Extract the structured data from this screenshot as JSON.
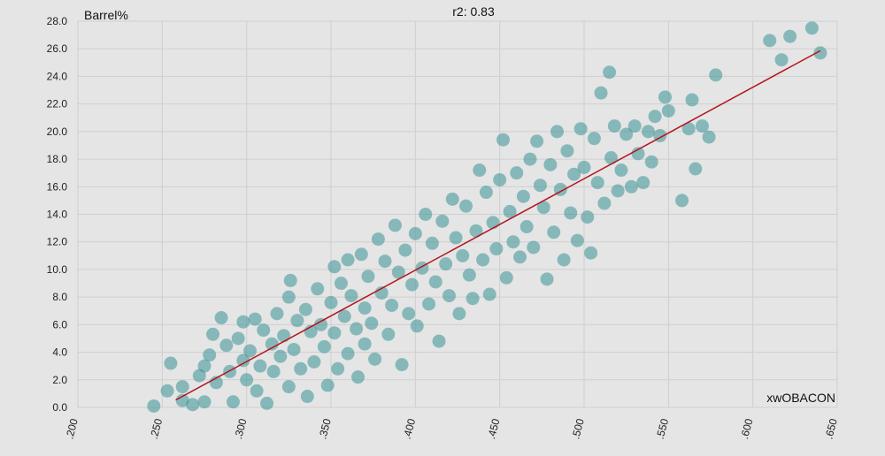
{
  "chart_data": {
    "type": "scatter",
    "title": "r2: 0.83",
    "xlabel": "xwOBACON",
    "ylabel": "Barrel%",
    "xlim": [
      0.2,
      0.65
    ],
    "ylim": [
      0,
      28
    ],
    "x_ticks": [
      ".200",
      ".250",
      ".300",
      ".350",
      ".400",
      ".450",
      ".500",
      ".550",
      ".600",
      ".650"
    ],
    "y_ticks": [
      "0.0",
      "2.0",
      "4.0",
      "6.0",
      "8.0",
      "10.0",
      "12.0",
      "14.0",
      "16.0",
      "18.0",
      "20.0",
      "22.0",
      "24.0",
      "26.0",
      "28.0"
    ],
    "grid": true,
    "dot_color": "#3a9396",
    "trend_color": "#b3141b",
    "trendline": {
      "slope": 66.3,
      "intercept": -16.57,
      "x_range": [
        0.258,
        0.64
      ]
    },
    "series": [
      {
        "points": [
          [
            0.245,
            0.1
          ],
          [
            0.253,
            1.2
          ],
          [
            0.255,
            3.2
          ],
          [
            0.262,
            0.5
          ],
          [
            0.262,
            1.5
          ],
          [
            0.268,
            0.2
          ],
          [
            0.272,
            2.3
          ],
          [
            0.275,
            3.0
          ],
          [
            0.275,
            0.4
          ],
          [
            0.278,
            3.8
          ],
          [
            0.28,
            5.3
          ],
          [
            0.282,
            1.8
          ],
          [
            0.285,
            6.5
          ],
          [
            0.288,
            4.5
          ],
          [
            0.29,
            2.6
          ],
          [
            0.292,
            0.4
          ],
          [
            0.295,
            5.0
          ],
          [
            0.298,
            3.4
          ],
          [
            0.298,
            6.2
          ],
          [
            0.3,
            2.0
          ],
          [
            0.302,
            4.1
          ],
          [
            0.305,
            6.4
          ],
          [
            0.306,
            1.2
          ],
          [
            0.308,
            3.0
          ],
          [
            0.31,
            5.6
          ],
          [
            0.312,
            0.3
          ],
          [
            0.315,
            4.6
          ],
          [
            0.316,
            2.6
          ],
          [
            0.318,
            6.8
          ],
          [
            0.32,
            3.7
          ],
          [
            0.322,
            5.2
          ],
          [
            0.325,
            1.5
          ],
          [
            0.325,
            8.0
          ],
          [
            0.326,
            9.2
          ],
          [
            0.328,
            4.2
          ],
          [
            0.33,
            6.3
          ],
          [
            0.332,
            2.8
          ],
          [
            0.335,
            7.1
          ],
          [
            0.336,
            0.8
          ],
          [
            0.338,
            5.5
          ],
          [
            0.34,
            3.3
          ],
          [
            0.342,
            8.6
          ],
          [
            0.344,
            6.0
          ],
          [
            0.346,
            4.4
          ],
          [
            0.348,
            1.6
          ],
          [
            0.35,
            7.6
          ],
          [
            0.352,
            10.2
          ],
          [
            0.352,
            5.4
          ],
          [
            0.354,
            2.8
          ],
          [
            0.356,
            9.0
          ],
          [
            0.358,
            6.6
          ],
          [
            0.36,
            3.9
          ],
          [
            0.36,
            10.7
          ],
          [
            0.362,
            8.1
          ],
          [
            0.365,
            5.7
          ],
          [
            0.366,
            2.2
          ],
          [
            0.368,
            11.1
          ],
          [
            0.37,
            7.2
          ],
          [
            0.37,
            4.6
          ],
          [
            0.372,
            9.5
          ],
          [
            0.374,
            6.1
          ],
          [
            0.376,
            3.5
          ],
          [
            0.378,
            12.2
          ],
          [
            0.38,
            8.3
          ],
          [
            0.382,
            10.6
          ],
          [
            0.384,
            5.3
          ],
          [
            0.386,
            7.4
          ],
          [
            0.388,
            13.2
          ],
          [
            0.39,
            9.8
          ],
          [
            0.392,
            3.1
          ],
          [
            0.394,
            11.4
          ],
          [
            0.396,
            6.8
          ],
          [
            0.398,
            8.9
          ],
          [
            0.4,
            12.6
          ],
          [
            0.401,
            5.9
          ],
          [
            0.404,
            10.1
          ],
          [
            0.406,
            14.0
          ],
          [
            0.408,
            7.5
          ],
          [
            0.41,
            11.9
          ],
          [
            0.412,
            9.1
          ],
          [
            0.414,
            4.8
          ],
          [
            0.416,
            13.5
          ],
          [
            0.418,
            10.4
          ],
          [
            0.42,
            8.1
          ],
          [
            0.422,
            15.1
          ],
          [
            0.424,
            12.3
          ],
          [
            0.426,
            6.8
          ],
          [
            0.428,
            11.0
          ],
          [
            0.43,
            14.6
          ],
          [
            0.432,
            9.6
          ],
          [
            0.434,
            7.9
          ],
          [
            0.436,
            12.8
          ],
          [
            0.438,
            17.2
          ],
          [
            0.44,
            10.7
          ],
          [
            0.442,
            15.6
          ],
          [
            0.444,
            8.2
          ],
          [
            0.446,
            13.4
          ],
          [
            0.448,
            11.5
          ],
          [
            0.45,
            16.5
          ],
          [
            0.452,
            19.4
          ],
          [
            0.454,
            9.4
          ],
          [
            0.456,
            14.2
          ],
          [
            0.458,
            12.0
          ],
          [
            0.46,
            17.0
          ],
          [
            0.462,
            10.9
          ],
          [
            0.464,
            15.3
          ],
          [
            0.466,
            13.1
          ],
          [
            0.468,
            18.0
          ],
          [
            0.47,
            11.6
          ],
          [
            0.472,
            19.3
          ],
          [
            0.474,
            16.1
          ],
          [
            0.476,
            14.5
          ],
          [
            0.478,
            9.3
          ],
          [
            0.48,
            17.6
          ],
          [
            0.482,
            12.7
          ],
          [
            0.484,
            20.0
          ],
          [
            0.486,
            15.8
          ],
          [
            0.488,
            10.7
          ],
          [
            0.49,
            18.6
          ],
          [
            0.492,
            14.1
          ],
          [
            0.494,
            16.9
          ],
          [
            0.496,
            12.1
          ],
          [
            0.498,
            20.2
          ],
          [
            0.5,
            17.4
          ],
          [
            0.502,
            13.8
          ],
          [
            0.504,
            11.2
          ],
          [
            0.506,
            19.5
          ],
          [
            0.508,
            16.3
          ],
          [
            0.51,
            22.8
          ],
          [
            0.512,
            14.8
          ],
          [
            0.515,
            24.3
          ],
          [
            0.516,
            18.1
          ],
          [
            0.518,
            20.4
          ],
          [
            0.52,
            15.7
          ],
          [
            0.522,
            17.2
          ],
          [
            0.525,
            19.8
          ],
          [
            0.528,
            16.0
          ],
          [
            0.53,
            20.4
          ],
          [
            0.532,
            18.4
          ],
          [
            0.535,
            16.3
          ],
          [
            0.538,
            20.0
          ],
          [
            0.54,
            17.8
          ],
          [
            0.542,
            21.1
          ],
          [
            0.545,
            19.7
          ],
          [
            0.548,
            22.5
          ],
          [
            0.55,
            21.5
          ],
          [
            0.558,
            15.0
          ],
          [
            0.562,
            20.2
          ],
          [
            0.564,
            22.3
          ],
          [
            0.566,
            17.3
          ],
          [
            0.57,
            20.4
          ],
          [
            0.574,
            19.6
          ],
          [
            0.578,
            24.1
          ],
          [
            0.61,
            26.6
          ],
          [
            0.617,
            25.2
          ],
          [
            0.622,
            26.9
          ],
          [
            0.635,
            27.5
          ],
          [
            0.64,
            25.7
          ]
        ]
      }
    ]
  }
}
